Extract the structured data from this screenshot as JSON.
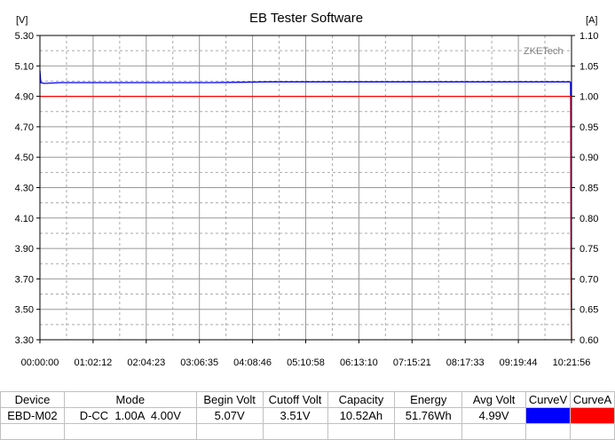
{
  "chart_data": {
    "type": "line",
    "title": "EB Tester Software",
    "watermark": "ZKETech",
    "left_axis": {
      "unit_label": "[V]",
      "range": [
        3.3,
        5.3
      ],
      "ticks": [
        "5.30",
        "5.10",
        "4.90",
        "4.70",
        "4.50",
        "4.30",
        "4.10",
        "3.90",
        "3.70",
        "3.50",
        "3.30"
      ],
      "tick_values": [
        5.3,
        5.1,
        4.9,
        4.7,
        4.5,
        4.3,
        4.1,
        3.9,
        3.7,
        3.5,
        3.3
      ]
    },
    "right_axis": {
      "unit_label": "[A]",
      "range": [
        0.6,
        1.1
      ],
      "ticks": [
        "1.10",
        "1.05",
        "1.00",
        "0.95",
        "0.90",
        "0.85",
        "0.80",
        "0.75",
        "0.70",
        "0.65",
        "0.60"
      ],
      "tick_values": [
        1.1,
        1.05,
        1.0,
        0.95,
        0.9,
        0.85,
        0.8,
        0.75,
        0.7,
        0.65,
        0.6
      ]
    },
    "x_axis": {
      "range_seconds": [
        0,
        37316
      ],
      "ticks": [
        "00:00:00",
        "01:02:12",
        "02:04:23",
        "03:06:35",
        "04:08:46",
        "05:10:58",
        "06:13:10",
        "07:15:21",
        "08:17:33",
        "09:19:44",
        "10:21:56"
      ],
      "tick_seconds": [
        0,
        3732,
        7463,
        11195,
        14926,
        18658,
        22390,
        26121,
        29853,
        33584,
        37316
      ]
    },
    "grid": true,
    "series": [
      {
        "axis": "left",
        "color": "#0000ff",
        "x": [
          0,
          60,
          300,
          1500,
          4000,
          8000,
          12000,
          16000,
          20000,
          24000,
          28000,
          32000,
          36000,
          37200,
          37250,
          37290,
          37316
        ],
        "y": [
          5.07,
          4.99,
          4.985,
          4.99,
          4.99,
          4.99,
          4.99,
          4.995,
          4.995,
          4.995,
          4.995,
          4.995,
          4.995,
          4.995,
          4.99,
          3.7,
          3.51
        ]
      },
      {
        "axis": "right",
        "color": "#ff0000",
        "x": [
          0,
          37270,
          37290,
          37316
        ],
        "y": [
          1.0,
          1.0,
          0.7,
          0.6
        ]
      }
    ]
  },
  "table": {
    "headers": [
      "Device",
      "Mode",
      "Begin Volt",
      "Cutoff Volt",
      "Capacity",
      "Energy",
      "Avg Volt",
      "CurveV",
      "CurveA"
    ],
    "row": {
      "device": "EBD-M02",
      "mode": "D-CC  1.00A  4.00V",
      "begin_volt": "5.07V",
      "cutoff_volt": "3.51V",
      "capacity": "10.52Ah",
      "energy": "51.76Wh",
      "avg_volt": "4.99V",
      "curve_v_color": "#0000ff",
      "curve_a_color": "#ff0000"
    }
  }
}
